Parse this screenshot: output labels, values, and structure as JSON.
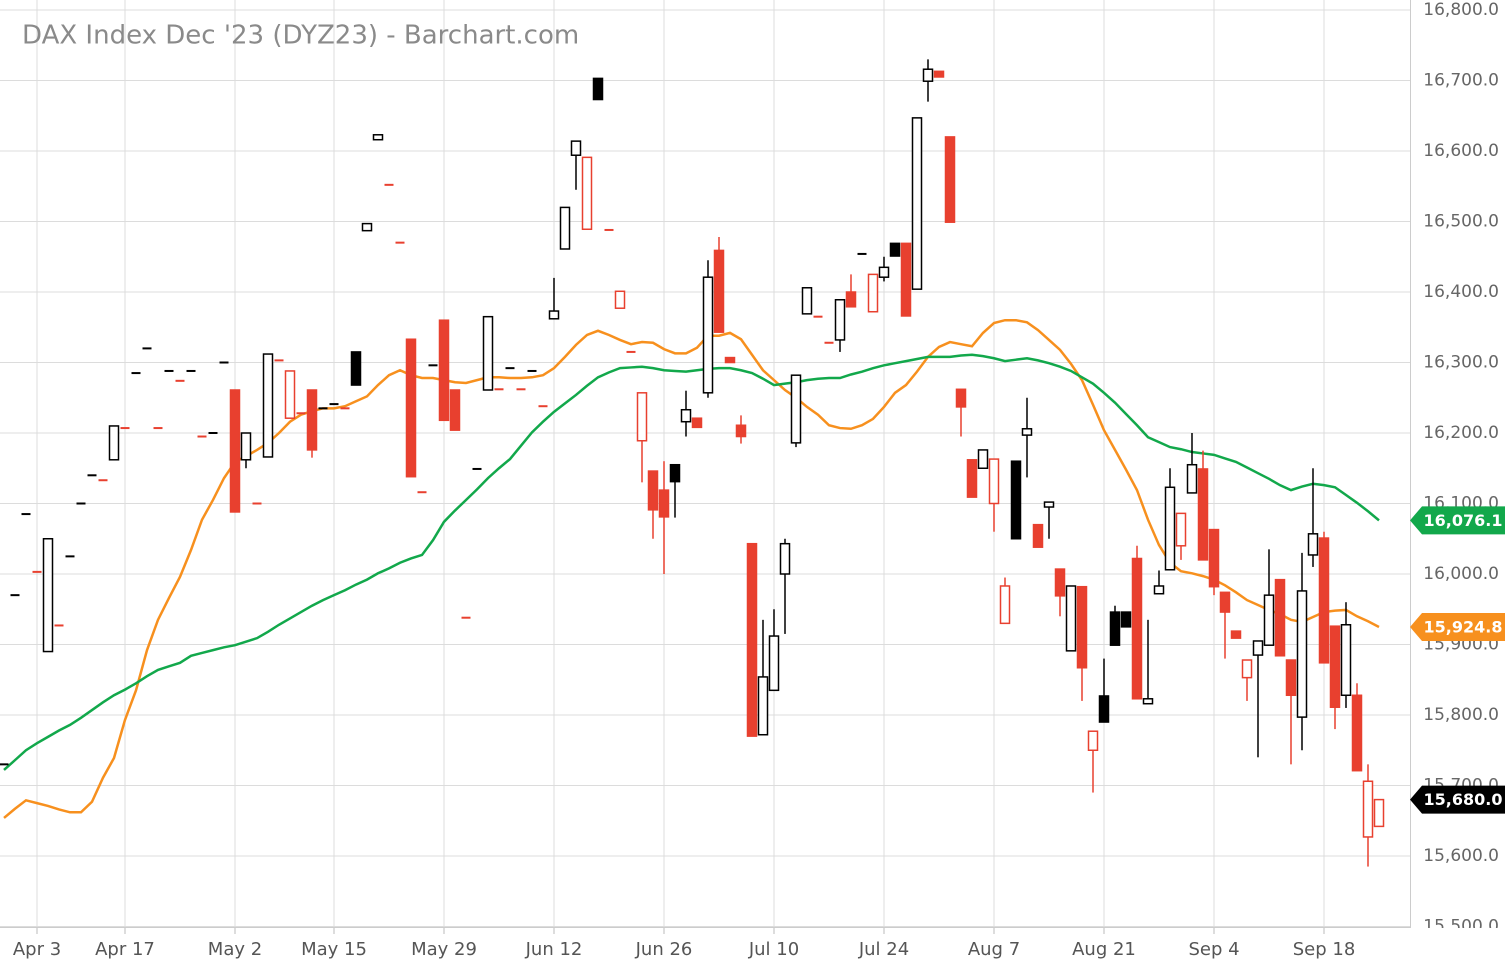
{
  "chart_data": {
    "type": "candlestick",
    "title": "DAX Index Dec '23 (DYZ23) - Barchart.com",
    "categories": [
      null,
      null,
      null,
      "Apr 3",
      null,
      null,
      null,
      null,
      null,
      null,
      null,
      "Apr 17",
      null,
      null,
      null,
      null,
      null,
      null,
      null,
      null,
      null,
      "May 2",
      null,
      null,
      null,
      null,
      null,
      null,
      null,
      null,
      "May 15",
      null,
      null,
      null,
      null,
      null,
      null,
      null,
      null,
      null,
      "May 29",
      null,
      null,
      null,
      null,
      null,
      null,
      null,
      null,
      null,
      "Jun 12",
      null,
      null,
      null,
      null,
      null,
      null,
      null,
      null,
      null,
      "Jun 26",
      null,
      null,
      null,
      null,
      null,
      null,
      null,
      null,
      null,
      "Jul 10",
      null,
      null,
      null,
      null,
      null,
      null,
      null,
      null,
      null,
      "Jul 24",
      null,
      null,
      null,
      null,
      null,
      null,
      null,
      null,
      null,
      "Aug 7",
      null,
      null,
      null,
      null,
      null,
      null,
      null,
      null,
      null,
      "Aug 21",
      null,
      null,
      null,
      null,
      null,
      null,
      null,
      null,
      null,
      "Sep 4",
      null,
      null,
      null,
      null,
      null,
      null,
      null,
      null,
      null,
      "Sep 18",
      null,
      null,
      null,
      null,
      null
    ],
    "open": [
      15730,
      15970,
      16085,
      16003,
      15890,
      15927,
      16025,
      16100,
      16140,
      16133,
      16162,
      16207,
      16285,
      16320,
      16207,
      16288,
      16274,
      16288,
      16195,
      16200,
      16300,
      16261,
      16162,
      16100,
      16166,
      16303,
      16221,
      16228,
      16261,
      16235,
      16241,
      16235,
      16315,
      16487,
      16616,
      16552,
      16470,
      16333,
      16116,
      16296,
      16360,
      16261,
      15938,
      16149,
      16261,
      16262,
      16292,
      16262,
      16288,
      16238,
      16362,
      16461,
      16594,
      16489,
      16703,
      16488,
      16377,
      16315,
      16189,
      16146,
      16119,
      16155,
      16216,
      16221,
      16257,
      16459,
      16307,
      16211,
      16043,
      15772,
      15835,
      16000,
      16186,
      16369,
      16365,
      16328,
      16332,
      16400,
      16454,
      16372,
      16421,
      16469,
      16469,
      16404,
      16699,
      16713,
      16620,
      16262,
      16162,
      16150,
      16100,
      15930,
      16160,
      16197,
      16070,
      16095,
      16007,
      15891,
      15982,
      15750,
      15827,
      15946,
      15946,
      16022,
      15816,
      15972,
      16006,
      16040,
      16115,
      16149,
      16063,
      15974,
      15919,
      15853,
      15885,
      15899,
      15992,
      15878,
      15797,
      16027,
      16051,
      15926,
      15828,
      15828,
      15627,
      15642
    ],
    "high": [
      15730,
      15970,
      16085,
      16003,
      16050,
      15927,
      16025,
      16100,
      16140,
      16133,
      16210,
      16207,
      16285,
      16320,
      16207,
      16288,
      16274,
      16288,
      16195,
      16200,
      16300,
      16261,
      16200,
      16100,
      16312,
      16303,
      16288,
      16228,
      16261,
      16235,
      16241,
      16235,
      16315,
      16497,
      16623,
      16552,
      16470,
      16333,
      16116,
      16296,
      16360,
      16261,
      15938,
      16149,
      16365,
      16262,
      16292,
      16262,
      16288,
      16238,
      16420,
      16520,
      16614,
      16591,
      16703,
      16488,
      16401,
      16315,
      16257,
      16146,
      16160,
      16155,
      16260,
      16221,
      16445,
      16478,
      16307,
      16225,
      16043,
      15935,
      15950,
      16050,
      16282,
      16406,
      16365,
      16328,
      16389,
      16425,
      16454,
      16425,
      16450,
      16469,
      16469,
      16647,
      16730,
      16713,
      16620,
      16262,
      16162,
      16176,
      16163,
      15995,
      16160,
      16250,
      16070,
      16102,
      16007,
      15983,
      15982,
      15777,
      15880,
      15955,
      15946,
      16040,
      15935,
      16005,
      16150,
      16086,
      16200,
      16175,
      16063,
      15974,
      15919,
      15878,
      15905,
      16035,
      15992,
      15878,
      16030,
      16150,
      16060,
      15926,
      15960,
      15845,
      15730,
      15680
    ],
    "low": [
      15730,
      15970,
      16085,
      16003,
      15890,
      15927,
      16025,
      16100,
      16140,
      16133,
      16162,
      16207,
      16285,
      16320,
      16207,
      16288,
      16274,
      16288,
      16195,
      16200,
      16300,
      16088,
      16150,
      16100,
      16166,
      16303,
      16221,
      16228,
      16165,
      16235,
      16241,
      16235,
      16268,
      16487,
      16616,
      16552,
      16470,
      16138,
      16116,
      16296,
      16218,
      16204,
      15938,
      16149,
      16261,
      16262,
      16292,
      16262,
      16288,
      16238,
      16362,
      16461,
      16545,
      16489,
      16673,
      16488,
      16377,
      16315,
      16130,
      16050,
      16000,
      16080,
      16195,
      16208,
      16250,
      16343,
      16300,
      16185,
      15770,
      15772,
      15835,
      15915,
      16180,
      16369,
      16365,
      16328,
      16315,
      16379,
      16454,
      16372,
      16415,
      16451,
      16366,
      16404,
      16670,
      16705,
      16499,
      16195,
      16109,
      16150,
      16060,
      15930,
      16050,
      16137,
      16038,
      16050,
      15940,
      15891,
      15820,
      15690,
      15790,
      15899,
      15925,
      15823,
      15816,
      15972,
      16006,
      16020,
      16115,
      16020,
      15970,
      15880,
      15909,
      15820,
      15740,
      15899,
      15884,
      15730,
      15750,
      16010,
      15874,
      15780,
      15810,
      15721,
      15585,
      15642
    ],
    "close": [
      15730,
      15970,
      16085,
      16003,
      16050,
      15927,
      16025,
      16100,
      16140,
      16133,
      16210,
      16207,
      16285,
      16320,
      16207,
      16288,
      16274,
      16288,
      16195,
      16200,
      16300,
      16088,
      16200,
      16100,
      16312,
      16303,
      16288,
      16228,
      16176,
      16235,
      16241,
      16235,
      16268,
      16497,
      16623,
      16552,
      16470,
      16138,
      16116,
      16296,
      16218,
      16204,
      15938,
      16149,
      16365,
      16262,
      16292,
      16262,
      16288,
      16238,
      16373,
      16520,
      16614,
      16591,
      16673,
      16488,
      16401,
      16315,
      16257,
      16091,
      16081,
      16131,
      16233,
      16208,
      16421,
      16343,
      16300,
      16195,
      15770,
      15854,
      15912,
      16043,
      16282,
      16406,
      16365,
      16328,
      16389,
      16379,
      16454,
      16425,
      16435,
      16451,
      16366,
      16647,
      16716,
      16705,
      16499,
      16237,
      16109,
      16176,
      16163,
      15983,
      16050,
      16206,
      16038,
      16102,
      15969,
      15983,
      15867,
      15777,
      15790,
      15899,
      15925,
      15823,
      15823,
      15983,
      16123,
      16086,
      16155,
      16020,
      15982,
      15946,
      15909,
      15878,
      15905,
      15970,
      15884,
      15828,
      15976,
      16057,
      15874,
      15811,
      15928,
      15721,
      15706,
      15680
    ],
    "last_label": "15,680.0",
    "down_color": "#e8402f",
    "up_color": "#000000",
    "last_tag_color": "#000000",
    "series": [
      {
        "color": "#f7901e",
        "last_label": "15,924.8",
        "values": [
          15654,
          15667,
          15679,
          15675,
          15671,
          15666,
          15662,
          15662,
          15677,
          15711,
          15739,
          15793,
          15835,
          15892,
          15935,
          15966,
          15996,
          16034,
          16077,
          16105,
          16136,
          16159,
          16167,
          16176,
          16186,
          16200,
          16216,
          16226,
          16231,
          16235,
          16235,
          16238,
          16245,
          16252,
          16268,
          16282,
          16289,
          16282,
          16278,
          16278,
          16275,
          16272,
          16271,
          16275,
          16279,
          16279,
          16278,
          16278,
          16279,
          16282,
          16292,
          16308,
          16325,
          16339,
          16345,
          16339,
          16332,
          16326,
          16329,
          16328,
          16319,
          16313,
          16313,
          16321,
          16338,
          16338,
          16342,
          16333,
          16311,
          16289,
          16275,
          16261,
          16250,
          16237,
          16226,
          16211,
          16207,
          16206,
          16211,
          16220,
          16237,
          16257,
          16268,
          16287,
          16308,
          16322,
          16329,
          16326,
          16323,
          16342,
          16356,
          16360,
          16360,
          16357,
          16346,
          16332,
          16318,
          16298,
          16275,
          16240,
          16204,
          16176,
          16148,
          16119,
          16077,
          16041,
          16016,
          16004,
          16001,
          15997,
          15992,
          15984,
          15974,
          15963,
          15956,
          15949,
          15943,
          15935,
          15932,
          15939,
          15946,
          15948,
          15949,
          15940,
          15933,
          15924.8
        ]
      },
      {
        "color": "#12a84b",
        "last_label": "16,076.1",
        "values": [
          15722,
          15736,
          15750,
          15760,
          15769,
          15778,
          15786,
          15796,
          15807,
          15818,
          15828,
          15836,
          15845,
          15855,
          15864,
          15869,
          15874,
          15884,
          15888,
          15892,
          15896,
          15899,
          15904,
          15909,
          15918,
          15928,
          15937,
          15946,
          15955,
          15963,
          15970,
          15977,
          15985,
          15992,
          16001,
          16008,
          16016,
          16022,
          16027,
          16048,
          16074,
          16090,
          16105,
          16120,
          16136,
          16150,
          16163,
          16182,
          16201,
          16216,
          16230,
          16242,
          16254,
          16267,
          16279,
          16286,
          16292,
          16293,
          16294,
          16292,
          16289,
          16288,
          16287,
          16289,
          16291,
          16292,
          16292,
          16289,
          16285,
          16277,
          16268,
          16270,
          16272,
          16275,
          16277,
          16278,
          16278,
          16283,
          16287,
          16292,
          16296,
          16299,
          16302,
          16305,
          16308,
          16308,
          16308,
          16310,
          16311,
          16309,
          16306,
          16302,
          16304,
          16306,
          16303,
          16299,
          16294,
          16288,
          16279,
          16270,
          16257,
          16243,
          16227,
          16211,
          16194,
          16187,
          16180,
          16177,
          16173,
          16171,
          16169,
          16164,
          16159,
          16151,
          16143,
          16135,
          16126,
          16119,
          16124,
          16128,
          16126,
          16123,
          16112,
          16101,
          16089,
          16076.1
        ]
      }
    ],
    "ylim": [
      15500,
      16800
    ],
    "yticks": [
      {
        "value": 15500,
        "label": "15,500.0"
      },
      {
        "value": 15600,
        "label": "15,600.0"
      },
      {
        "value": 15700,
        "label": "15,700.0"
      },
      {
        "value": 15800,
        "label": "15,800.0"
      },
      {
        "value": 15900,
        "label": "15,900.0"
      },
      {
        "value": 16000,
        "label": "16,000.0"
      },
      {
        "value": 16100,
        "label": "16,100.0"
      },
      {
        "value": 16200,
        "label": "16,200.0"
      },
      {
        "value": 16300,
        "label": "16,300.0"
      },
      {
        "value": 16400,
        "label": "16,400.0"
      },
      {
        "value": 16500,
        "label": "16,500.0"
      },
      {
        "value": 16600,
        "label": "16,600.0"
      },
      {
        "value": 16700,
        "label": "16,700.0"
      },
      {
        "value": 16800,
        "label": "16,800.0"
      }
    ],
    "grid": true
  }
}
